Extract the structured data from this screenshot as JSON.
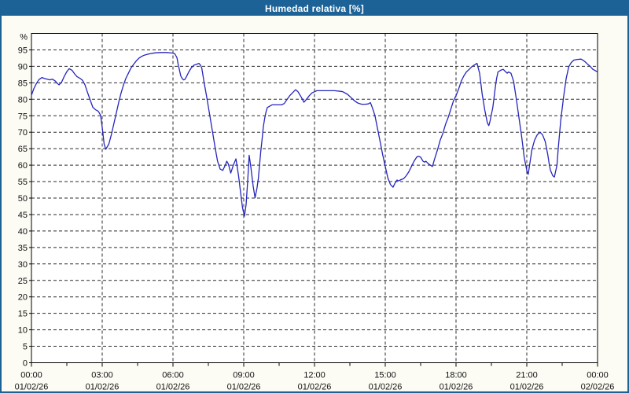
{
  "window": {
    "title": "Humedad relativa [%]"
  },
  "colors": {
    "titlebar": "#1d6297",
    "frame_border": "#1d6297",
    "background": "#fcfcf4",
    "plot_background": "#ffffff",
    "grid": "#2b2b2b",
    "axis": "#000000",
    "line": "#2525bd",
    "title_text": "#ffffff",
    "label_text": "#111111"
  },
  "chart_data": {
    "type": "line",
    "title": "Humedad relativa [%]",
    "ylabel": "%",
    "xlabel": "",
    "ylim": [
      0,
      100
    ],
    "x_hours_range": [
      0,
      24
    ],
    "grid": "dashed",
    "legend_position": "none",
    "y_unit_label": "%",
    "y_ticks": [
      {
        "v": 0,
        "label": "0"
      },
      {
        "v": 5,
        "label": "5"
      },
      {
        "v": 10,
        "label": "10"
      },
      {
        "v": 15,
        "label": "15"
      },
      {
        "v": 20,
        "label": "20"
      },
      {
        "v": 25,
        "label": "25"
      },
      {
        "v": 30,
        "label": "30"
      },
      {
        "v": 35,
        "label": "35"
      },
      {
        "v": 40,
        "label": "40"
      },
      {
        "v": 45,
        "label": "45"
      },
      {
        "v": 50,
        "label": "50"
      },
      {
        "v": 55,
        "label": "55"
      },
      {
        "v": 60,
        "label": "60"
      },
      {
        "v": 65,
        "label": "65"
      },
      {
        "v": 70,
        "label": "70"
      },
      {
        "v": 75,
        "label": "75"
      },
      {
        "v": 80,
        "label": "80"
      },
      {
        "v": 85,
        "label": "85"
      },
      {
        "v": 90,
        "label": "90"
      },
      {
        "v": 95,
        "label": "95"
      }
    ],
    "x_ticks": [
      {
        "h": 0,
        "time": "00:00",
        "date": "01/02/26"
      },
      {
        "h": 3,
        "time": "03:00",
        "date": "01/02/26"
      },
      {
        "h": 6,
        "time": "06:00",
        "date": "01/02/26"
      },
      {
        "h": 9,
        "time": "09:00",
        "date": "01/02/26"
      },
      {
        "h": 12,
        "time": "12:00",
        "date": "01/02/26"
      },
      {
        "h": 15,
        "time": "15:00",
        "date": "01/02/26"
      },
      {
        "h": 18,
        "time": "18:00",
        "date": "01/02/26"
      },
      {
        "h": 21,
        "time": "21:00",
        "date": "01/02/26"
      },
      {
        "h": 24,
        "time": "00:00",
        "date": "02/02/26"
      }
    ],
    "x_minor_ticks_h": [
      1.5,
      4.5,
      7.5,
      10.5,
      13.5,
      16.5,
      19.5,
      22.5
    ],
    "series": [
      {
        "name": "Humedad relativa",
        "unit": "%",
        "points": [
          [
            0,
            81.2
          ],
          [
            0.1,
            83.2
          ],
          [
            0.21,
            84.8
          ],
          [
            0.32,
            86.0
          ],
          [
            0.45,
            86.6
          ],
          [
            0.55,
            86.3
          ],
          [
            0.67,
            86.1
          ],
          [
            0.78,
            85.9
          ],
          [
            0.88,
            86.1
          ],
          [
            1.0,
            85.6
          ],
          [
            1.1,
            84.8
          ],
          [
            1.17,
            84.4
          ],
          [
            1.28,
            85.2
          ],
          [
            1.38,
            86.8
          ],
          [
            1.5,
            88.4
          ],
          [
            1.6,
            89.3
          ],
          [
            1.72,
            88.8
          ],
          [
            1.83,
            87.7
          ],
          [
            1.93,
            86.9
          ],
          [
            2.05,
            86.4
          ],
          [
            2.16,
            85.8
          ],
          [
            2.27,
            84.4
          ],
          [
            2.38,
            82.0
          ],
          [
            2.5,
            79.6
          ],
          [
            2.6,
            77.6
          ],
          [
            2.72,
            76.8
          ],
          [
            2.83,
            76.4
          ],
          [
            2.93,
            75.2
          ],
          [
            3.0,
            71.5
          ],
          [
            3.08,
            66.5
          ],
          [
            3.15,
            64.8
          ],
          [
            3.28,
            66.4
          ],
          [
            3.4,
            69.6
          ],
          [
            3.5,
            72.8
          ],
          [
            3.6,
            75.9
          ],
          [
            3.7,
            79.1
          ],
          [
            3.8,
            81.9
          ],
          [
            3.9,
            84.3
          ],
          [
            4.0,
            86.3
          ],
          [
            4.11,
            87.9
          ],
          [
            4.22,
            89.5
          ],
          [
            4.33,
            90.6
          ],
          [
            4.45,
            91.7
          ],
          [
            4.56,
            92.5
          ],
          [
            4.67,
            93.0
          ],
          [
            4.78,
            93.4
          ],
          [
            4.9,
            93.6
          ],
          [
            5.0,
            93.8
          ],
          [
            5.25,
            94.1
          ],
          [
            5.5,
            94.2
          ],
          [
            5.75,
            94.2
          ],
          [
            6.0,
            94.0
          ],
          [
            6.08,
            93.8
          ],
          [
            6.17,
            92.6
          ],
          [
            6.22,
            90.6
          ],
          [
            6.28,
            88.7
          ],
          [
            6.33,
            87.1
          ],
          [
            6.4,
            86.2
          ],
          [
            6.45,
            85.9
          ],
          [
            6.5,
            86.0
          ],
          [
            6.56,
            86.7
          ],
          [
            6.67,
            88.3
          ],
          [
            6.78,
            89.6
          ],
          [
            6.9,
            90.4
          ],
          [
            7.0,
            90.6
          ],
          [
            7.1,
            90.9
          ],
          [
            7.17,
            90.3
          ],
          [
            7.22,
            89.5
          ],
          [
            7.33,
            84.7
          ],
          [
            7.45,
            79.9
          ],
          [
            7.56,
            75.1
          ],
          [
            7.67,
            70.4
          ],
          [
            7.78,
            65.6
          ],
          [
            7.89,
            61.2
          ],
          [
            8.0,
            58.8
          ],
          [
            8.11,
            58.4
          ],
          [
            8.22,
            60.0
          ],
          [
            8.28,
            61.2
          ],
          [
            8.35,
            60.3
          ],
          [
            8.45,
            57.6
          ],
          [
            8.56,
            60.0
          ],
          [
            8.67,
            61.9
          ],
          [
            8.78,
            56.8
          ],
          [
            8.87,
            51.5
          ],
          [
            8.95,
            47.0
          ],
          [
            9.03,
            44.5
          ],
          [
            9.1,
            48.0
          ],
          [
            9.17,
            55.5
          ],
          [
            9.23,
            63.0
          ],
          [
            9.3,
            59.5
          ],
          [
            9.4,
            53.6
          ],
          [
            9.48,
            50.1
          ],
          [
            9.56,
            52.9
          ],
          [
            9.62,
            56.0
          ],
          [
            9.67,
            60.0
          ],
          [
            9.72,
            64.0
          ],
          [
            9.78,
            68.0
          ],
          [
            9.83,
            71.6
          ],
          [
            9.89,
            74.3
          ],
          [
            9.95,
            76.3
          ],
          [
            10.0,
            77.5
          ],
          [
            10.1,
            77.9
          ],
          [
            10.2,
            78.3
          ],
          [
            10.4,
            78.3
          ],
          [
            10.6,
            78.3
          ],
          [
            10.72,
            78.7
          ],
          [
            10.83,
            79.9
          ],
          [
            10.95,
            81.1
          ],
          [
            11.06,
            81.9
          ],
          [
            11.2,
            82.9
          ],
          [
            11.3,
            82.3
          ],
          [
            11.45,
            80.5
          ],
          [
            11.55,
            79.1
          ],
          [
            11.65,
            79.9
          ],
          [
            11.78,
            81.1
          ],
          [
            11.89,
            81.9
          ],
          [
            12.0,
            82.3
          ],
          [
            12.1,
            82.6
          ],
          [
            12.35,
            82.6
          ],
          [
            12.6,
            82.6
          ],
          [
            12.85,
            82.6
          ],
          [
            13.1,
            82.4
          ],
          [
            13.2,
            82.3
          ],
          [
            13.4,
            81.5
          ],
          [
            13.55,
            80.5
          ],
          [
            13.7,
            79.5
          ],
          [
            13.85,
            78.8
          ],
          [
            14.0,
            78.5
          ],
          [
            14.15,
            78.5
          ],
          [
            14.28,
            78.6
          ],
          [
            14.37,
            79.0
          ],
          [
            14.45,
            77.5
          ],
          [
            14.56,
            75.1
          ],
          [
            14.67,
            71.2
          ],
          [
            14.78,
            67.2
          ],
          [
            14.89,
            63.2
          ],
          [
            15.0,
            59.6
          ],
          [
            15.11,
            56.1
          ],
          [
            15.22,
            54.1
          ],
          [
            15.33,
            53.3
          ],
          [
            15.44,
            54.9
          ],
          [
            15.5,
            55.5
          ],
          [
            15.56,
            55.2
          ],
          [
            15.67,
            55.6
          ],
          [
            15.78,
            55.9
          ],
          [
            15.89,
            56.8
          ],
          [
            16.0,
            58.0
          ],
          [
            16.11,
            59.6
          ],
          [
            16.22,
            61.2
          ],
          [
            16.33,
            62.4
          ],
          [
            16.4,
            62.7
          ],
          [
            16.5,
            62.4
          ],
          [
            16.6,
            61.2
          ],
          [
            16.67,
            60.9
          ],
          [
            16.72,
            61.2
          ],
          [
            16.83,
            60.4
          ],
          [
            17.0,
            59.6
          ],
          [
            17.08,
            61.6
          ],
          [
            17.22,
            64.8
          ],
          [
            17.33,
            67.6
          ],
          [
            17.44,
            69.6
          ],
          [
            17.56,
            72.5
          ],
          [
            17.67,
            74.5
          ],
          [
            17.78,
            77.0
          ],
          [
            17.89,
            79.5
          ],
          [
            18.0,
            81.1
          ],
          [
            18.11,
            83.1
          ],
          [
            18.22,
            85.5
          ],
          [
            18.33,
            87.1
          ],
          [
            18.44,
            88.3
          ],
          [
            18.56,
            89.1
          ],
          [
            18.67,
            89.9
          ],
          [
            18.78,
            90.4
          ],
          [
            18.89,
            90.9
          ],
          [
            19.0,
            87.9
          ],
          [
            19.11,
            81.5
          ],
          [
            19.22,
            76.7
          ],
          [
            19.33,
            72.8
          ],
          [
            19.39,
            72.0
          ],
          [
            19.44,
            73.3
          ],
          [
            19.56,
            77.5
          ],
          [
            19.67,
            83.9
          ],
          [
            19.72,
            86.3
          ],
          [
            19.78,
            88.3
          ],
          [
            19.89,
            88.8
          ],
          [
            20.0,
            89.1
          ],
          [
            20.11,
            88.3
          ],
          [
            20.17,
            87.9
          ],
          [
            20.22,
            88.3
          ],
          [
            20.33,
            87.9
          ],
          [
            20.44,
            85.5
          ],
          [
            20.56,
            79.9
          ],
          [
            20.67,
            74.3
          ],
          [
            20.78,
            68.8
          ],
          [
            20.89,
            62.4
          ],
          [
            21.0,
            58.4
          ],
          [
            21.06,
            57.2
          ],
          [
            21.11,
            59.6
          ],
          [
            21.22,
            64.8
          ],
          [
            21.33,
            67.6
          ],
          [
            21.44,
            69.2
          ],
          [
            21.56,
            70.0
          ],
          [
            21.67,
            69.2
          ],
          [
            21.78,
            67.2
          ],
          [
            21.89,
            63.2
          ],
          [
            21.94,
            60.8
          ],
          [
            22.0,
            58.5
          ],
          [
            22.1,
            56.8
          ],
          [
            22.17,
            56.4
          ],
          [
            22.28,
            60.0
          ],
          [
            22.33,
            64.8
          ],
          [
            22.44,
            73.6
          ],
          [
            22.56,
            80.7
          ],
          [
            22.67,
            86.3
          ],
          [
            22.78,
            89.9
          ],
          [
            22.89,
            91.2
          ],
          [
            23.0,
            91.9
          ],
          [
            23.15,
            92.1
          ],
          [
            23.3,
            92.2
          ],
          [
            23.4,
            91.8
          ],
          [
            23.5,
            91.2
          ],
          [
            23.6,
            90.5
          ],
          [
            23.7,
            89.9
          ],
          [
            23.8,
            89.1
          ],
          [
            23.9,
            88.7
          ],
          [
            24.0,
            88.3
          ]
        ]
      }
    ]
  }
}
